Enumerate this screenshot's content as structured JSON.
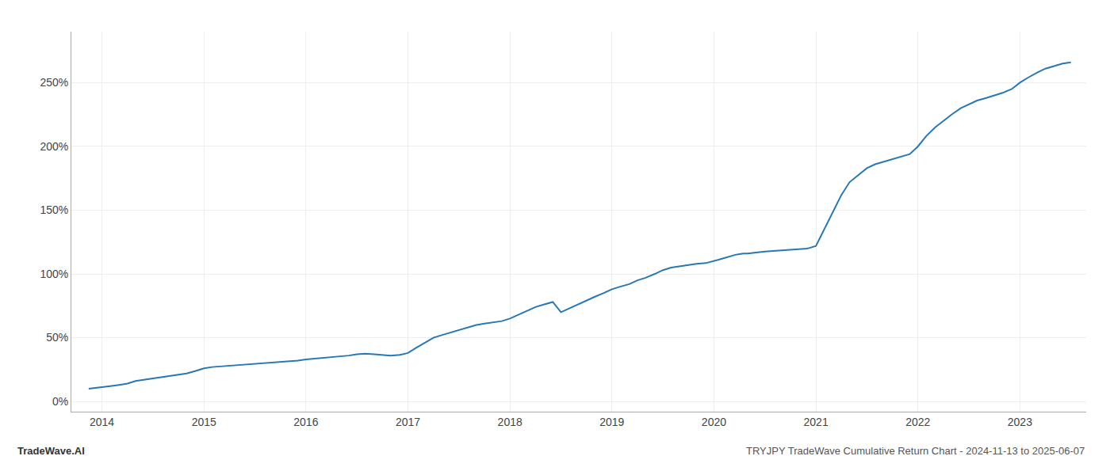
{
  "chart_data": {
    "type": "line",
    "annotations": [
      "TradeWave.AI",
      "TRYJPY TradeWave Cumulative Return Chart - 2024-11-13 to 2025-06-07"
    ],
    "color": "#2878b5",
    "grid": true,
    "x": [
      2013.87,
      2014.0,
      2014.08,
      2014.17,
      2014.25,
      2014.33,
      2014.42,
      2014.5,
      2014.58,
      2014.67,
      2014.75,
      2014.83,
      2014.92,
      2015.0,
      2015.08,
      2015.17,
      2015.25,
      2015.33,
      2015.42,
      2015.5,
      2015.58,
      2015.67,
      2015.75,
      2015.83,
      2015.92,
      2016.0,
      2016.08,
      2016.17,
      2016.25,
      2016.33,
      2016.42,
      2016.5,
      2016.58,
      2016.67,
      2016.75,
      2016.83,
      2016.92,
      2017.0,
      2017.08,
      2017.17,
      2017.25,
      2017.33,
      2017.42,
      2017.5,
      2017.58,
      2017.67,
      2017.75,
      2017.83,
      2017.92,
      2018.0,
      2018.08,
      2018.17,
      2018.25,
      2018.33,
      2018.42,
      2018.5,
      2018.58,
      2018.67,
      2018.75,
      2018.83,
      2018.92,
      2019.0,
      2019.08,
      2019.17,
      2019.25,
      2019.33,
      2019.42,
      2019.5,
      2019.58,
      2019.67,
      2019.75,
      2019.83,
      2019.92,
      2020.0,
      2020.04,
      2020.08,
      2020.12,
      2020.17,
      2020.21,
      2020.25,
      2020.29,
      2020.33,
      2020.42,
      2020.5,
      2020.58,
      2020.67,
      2020.75,
      2020.83,
      2020.92,
      2021.0,
      2021.08,
      2021.17,
      2021.25,
      2021.33,
      2021.42,
      2021.5,
      2021.58,
      2021.67,
      2021.75,
      2021.83,
      2021.92,
      2022.0,
      2022.08,
      2022.17,
      2022.25,
      2022.33,
      2022.42,
      2022.5,
      2022.58,
      2022.67,
      2022.75,
      2022.83,
      2022.92,
      2023.0,
      2023.08,
      2023.17,
      2023.25,
      2023.33,
      2023.42,
      2023.5
    ],
    "values": [
      10,
      11,
      12,
      13,
      14,
      16,
      17,
      18,
      19,
      20,
      21,
      22,
      24,
      26,
      27,
      27.5,
      28,
      28.5,
      29,
      29.5,
      30,
      30.5,
      31,
      31.5,
      32,
      33,
      33.5,
      34,
      34.5,
      35,
      36,
      37,
      37.5,
      37,
      36.5,
      36,
      36.5,
      38,
      42,
      46,
      50,
      52,
      54,
      56,
      58,
      60,
      61,
      62,
      63,
      65,
      68,
      71,
      74,
      76,
      78,
      70,
      73,
      76,
      79,
      82,
      85,
      88,
      90,
      92,
      95,
      97,
      100,
      103,
      105,
      106,
      107,
      108,
      108.5,
      110,
      111,
      112,
      113,
      114,
      115,
      115.5,
      116,
      116,
      117,
      117.5,
      118,
      118.5,
      119,
      119.5,
      120,
      122,
      135,
      150,
      162,
      172,
      178,
      183,
      186,
      188,
      190,
      192,
      194,
      200,
      208,
      215,
      220,
      225,
      230,
      233,
      236,
      238,
      240,
      242,
      245,
      250,
      254,
      258,
      261,
      263,
      265,
      266
    ],
    "xlim": [
      2013.7,
      2023.65
    ],
    "xticks": [
      2014,
      2015,
      2016,
      2017,
      2018,
      2019,
      2020,
      2021,
      2022,
      2023
    ],
    "ylim": [
      -8,
      290
    ],
    "yticks": [
      {
        "value": 0,
        "label": "0%"
      },
      {
        "value": 50,
        "label": "50%"
      },
      {
        "value": 100,
        "label": "100%"
      },
      {
        "value": 150,
        "label": "150%"
      },
      {
        "value": 200,
        "label": "200%"
      },
      {
        "value": 250,
        "label": "250%"
      }
    ]
  }
}
